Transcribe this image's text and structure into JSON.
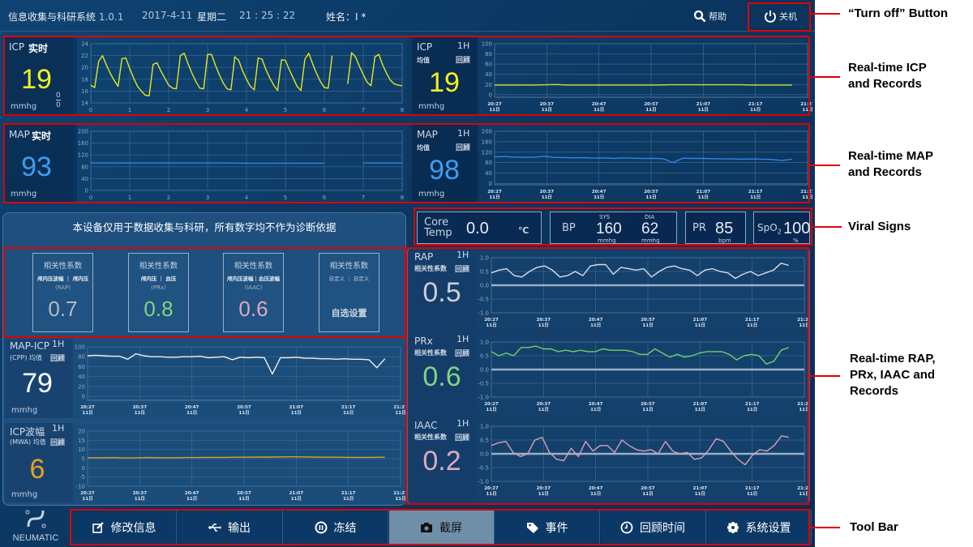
{
  "header": {
    "title": "信息收集与科研系统",
    "version": "1.0.1",
    "date": "2017-4-11",
    "weekday": "星期二",
    "time": "21 : 25 : 22",
    "patient": "姓名：I *",
    "help": "帮助",
    "shutdown": "关机"
  },
  "icp_rt": {
    "name": "ICP",
    "mode": "实时",
    "value": "19",
    "unit": "mmhg",
    "frac_top": "0",
    "frac_bottom": "0",
    "color": "#f2f21a"
  },
  "icp_1h": {
    "name": "ICP",
    "period": "1H",
    "sub": "均值",
    "review": "回顾",
    "value": "19",
    "unit": "mmhg",
    "color": "#f2f21a"
  },
  "map_rt": {
    "name": "MAP",
    "mode": "实时",
    "value": "93",
    "unit": "mmhg",
    "color": "#3d9df0"
  },
  "map_1h": {
    "name": "MAP",
    "period": "1H",
    "sub": "均值",
    "review": "回顾",
    "value": "98",
    "unit": "mmhg",
    "color": "#3d9df0"
  },
  "disclaimer": "本设备仅用于数据收集与科研，所有数字均不作为诊断依据",
  "vitals": {
    "core_label1": "Core",
    "core_label2": "Temp",
    "core_value": "0.0",
    "core_unit": "℃",
    "bp_label": "BP",
    "sys_label": "SYS",
    "sys_value": "160",
    "sys_unit": "mmhg",
    "dia_label": "DIA",
    "dia_value": "62",
    "dia_unit": "mmhg",
    "pr_label": "PR",
    "pr_value": "85",
    "pr_unit": "bpm",
    "spo2_label": "SpO",
    "spo2_sub": "2",
    "spo2_value": "100",
    "spo2_unit": "%"
  },
  "correlations": [
    {
      "title": "相关性系数",
      "sub": "颅内压波幅 ｜ 颅内压",
      "abbr": "(RAP)",
      "value": "0.7",
      "color": "#b4bcc4"
    },
    {
      "title": "相关性系数",
      "sub": "颅内压 ｜ 血压",
      "abbr": "(PRx)",
      "value": "0.8",
      "color": "#7ed67e"
    },
    {
      "title": "相关性系数",
      "sub": "颅内压波幅｜血压波幅",
      "abbr": "(IAAC)",
      "value": "0.6",
      "color": "#e0a9bd"
    },
    {
      "title": "相关性系数",
      "sub": "自定义 ｜ 自定义",
      "abbr": "",
      "value": "自选设置",
      "color": "#c8d4e0"
    }
  ],
  "cpp": {
    "name": "MAP-ICP",
    "period": "1H",
    "sub": "(CPP) 均值",
    "review": "回顾",
    "value": "79",
    "unit": "mmhg",
    "color": "#ffffff"
  },
  "mwa": {
    "name": "ICP波幅",
    "period": "1H",
    "sub": "(MWA) 均值",
    "review": "回顾",
    "value": "6",
    "unit": "mmhg",
    "color": "#e3a21c"
  },
  "rap": {
    "name": "RAP",
    "period": "1H",
    "sub": "相关性系数",
    "review": "回顾",
    "value": "0.5",
    "color": "#c9ced4"
  },
  "prx": {
    "name": "PRx",
    "period": "1H",
    "sub": "相关性系数",
    "review": "回顾",
    "value": "0.6",
    "color": "#7ed67e"
  },
  "iaac": {
    "name": "IAAC",
    "period": "1H",
    "sub": "相关性系数",
    "review": "回顾",
    "value": "0.2",
    "color": "#e0a9bd"
  },
  "toolbar": {
    "logo": "NEUMATIC",
    "items": [
      {
        "label": "修改信息",
        "icon": "edit-icon"
      },
      {
        "label": "输出",
        "icon": "usb-icon"
      },
      {
        "label": "冻结",
        "icon": "pause-icon"
      },
      {
        "label": "截屏",
        "icon": "camera-icon",
        "active": true
      },
      {
        "label": "事件",
        "icon": "tag-icon"
      },
      {
        "label": "回顾时间",
        "icon": "clock-icon"
      },
      {
        "label": "系统设置",
        "icon": "gear-icon"
      }
    ]
  },
  "annotations": {
    "turnoff": "“Turn off” Button",
    "icp": [
      "Real-time ICP",
      "and Records"
    ],
    "map": [
      "Real-time MAP",
      "and Records"
    ],
    "vitals": "Viral Signs",
    "corr": [
      "Real-time RAP,",
      "PRx, IAAC and",
      "Records"
    ],
    "toolbar": "Tool Bar"
  },
  "chart_data": {
    "time_ticks": [
      "20:27",
      "20:37",
      "20:47",
      "20:57",
      "21:07",
      "21:17",
      "21:27"
    ],
    "time_sub": "11日",
    "icp_rt": {
      "type": "line",
      "xlim": [
        0,
        8
      ],
      "xticks": [
        "0",
        "1",
        "2",
        "3",
        "4",
        "5",
        "6",
        "7",
        "8"
      ],
      "ylim": [
        14,
        24
      ],
      "yticks": [
        14,
        16,
        18,
        20,
        22,
        24
      ],
      "color": "#e6e61c",
      "values": [
        17,
        16.6,
        21,
        22,
        20.4,
        19,
        17.8,
        16.8,
        21.5,
        21.6,
        19.8,
        18.2,
        16.8,
        16,
        15.3,
        15.2,
        20.5,
        20.8,
        19.4,
        18.2,
        17,
        16.5,
        16.4,
        22,
        22.4,
        20.6,
        19,
        17.6,
        16.5,
        16.4,
        22.2,
        22.2,
        20.4,
        18.8,
        17.4,
        16.4,
        16.2,
        21.8,
        21.2,
        19.4,
        18,
        16.8,
        16.2,
        21.6,
        21.4,
        19.6,
        18.2,
        17,
        16.1,
        21.3,
        21.2,
        19.6,
        18.2,
        16.8,
        16.1,
        21.4,
        22.4,
        20.6,
        19,
        17.6,
        16.6,
        16.5,
        22,
        null,
        null,
        null,
        17.2,
        22.5,
        21.8,
        20.2,
        18.8,
        17.5,
        16.9,
        21.8,
        22.2,
        20.4,
        19,
        17.8,
        17.2,
        17,
        16.9
      ]
    },
    "map_rt": {
      "type": "line",
      "xlim": [
        0,
        8
      ],
      "xticks": [
        "0",
        "1",
        "2",
        "3",
        "4",
        "5",
        "6",
        "7",
        "8"
      ],
      "ylim": [
        0,
        200
      ],
      "yticks": [
        0,
        40,
        80,
        120,
        160,
        200
      ],
      "color": "#2f86e0",
      "values": [
        93,
        93,
        93,
        93,
        93,
        93,
        93,
        93,
        92,
        92,
        92,
        92,
        92,
        null,
        93,
        93,
        93
      ]
    },
    "icp_1h": {
      "type": "line",
      "xrange": [
        "20:27",
        "21:24"
      ],
      "ylim": [
        -5,
        100
      ],
      "yticks": [
        0,
        20,
        40,
        60,
        80,
        100
      ],
      "color": "#c8e02a",
      "values": [
        19,
        19,
        19,
        19,
        19,
        19.5,
        20,
        19,
        19,
        19,
        19,
        19,
        19,
        19,
        19,
        19,
        19,
        19.5,
        19.5,
        19.5,
        19.5,
        19.5,
        19.5,
        19.5,
        19.5,
        19,
        19,
        19,
        19,
        19
      ]
    },
    "map_1h": {
      "type": "line",
      "xrange": [
        "20:27",
        "21:24"
      ],
      "ylim": [
        -5,
        200
      ],
      "yticks": [
        0,
        40,
        80,
        120,
        160,
        200
      ],
      "color": "#2f86e0",
      "values": [
        102,
        103,
        101,
        100,
        101,
        104,
        100,
        99,
        98,
        99,
        97,
        98,
        96,
        98,
        97,
        96,
        96,
        95,
        80,
        97,
        96,
        96,
        95,
        94,
        94,
        93,
        94,
        93,
        92,
        88,
        93
      ]
    },
    "cpp": {
      "type": "line",
      "xrange": [
        "20:27",
        "21:24"
      ],
      "ylim": [
        -8,
        100
      ],
      "yticks": [
        0,
        20,
        40,
        60,
        80,
        100
      ],
      "color": "#f0f0f0",
      "values": [
        82,
        83,
        82,
        81,
        81,
        75,
        86,
        82,
        80,
        80,
        79,
        79,
        80,
        80,
        81,
        78,
        79,
        80,
        74,
        79,
        78,
        79,
        78,
        45,
        78,
        78,
        79,
        77,
        77,
        76,
        76,
        75,
        76,
        75,
        75,
        74,
        58,
        76
      ]
    },
    "mwa": {
      "type": "line",
      "xrange": [
        "20:27",
        "21:24"
      ],
      "ylim": [
        -10,
        20
      ],
      "yticks": [
        -10,
        -5,
        0,
        5,
        10,
        15,
        20
      ],
      "color": "#d6a318",
      "values": [
        5.5,
        5.5,
        5.6,
        5.4,
        5.5,
        5.6,
        5.5,
        5.5,
        5.6,
        5.6,
        5.7,
        5.7,
        5.8,
        5.8,
        5.9,
        5.9,
        6,
        6,
        5.9,
        5.8,
        5.8,
        5.7,
        5.7,
        5.7,
        5.8
      ]
    },
    "rap": {
      "type": "line",
      "xrange": [
        "20:27",
        "21:24"
      ],
      "ylim": [
        -1,
        1
      ],
      "yticks": [
        -1.0,
        -0.5,
        0.0,
        0.5,
        1.0
      ],
      "zero_line": true,
      "color": "#d8dde2",
      "values": [
        0.45,
        0.55,
        0.6,
        0.35,
        0.3,
        0.5,
        0.65,
        0.7,
        0.55,
        0.3,
        0.35,
        0.5,
        0.35,
        0.7,
        0.75,
        0.75,
        0.4,
        0.65,
        0.6,
        0.55,
        0.6,
        0.3,
        0.5,
        0.65,
        0.7,
        0.6,
        0.55,
        0.35,
        0.55,
        0.6,
        0.5,
        0.45,
        0.25,
        0.4,
        0.5,
        0.35,
        0.45,
        0.55,
        0.8,
        0.72
      ]
    },
    "prx": {
      "type": "line",
      "xrange": [
        "20:27",
        "21:24"
      ],
      "ylim": [
        -1,
        1
      ],
      "yticks": [
        -1.0,
        -0.5,
        0.0,
        0.5,
        1.0
      ],
      "zero_line": true,
      "color": "#6fcf6f",
      "values": [
        0.65,
        0.5,
        0.6,
        0.5,
        0.8,
        0.8,
        0.85,
        0.75,
        0.75,
        0.65,
        0.7,
        0.65,
        0.7,
        0.65,
        0.65,
        0.75,
        0.7,
        0.7,
        0.7,
        0.65,
        0.55,
        0.55,
        0.75,
        0.6,
        0.45,
        0.55,
        0.45,
        0.5,
        0.6,
        0.65,
        0.65,
        0.65,
        0.55,
        0.35,
        0.5,
        0.55,
        0.5,
        0.2,
        0.3,
        0.7,
        0.8
      ]
    },
    "iaac": {
      "type": "line",
      "xrange": [
        "20:27",
        "21:24"
      ],
      "ylim": [
        -1,
        1
      ],
      "yticks": [
        -1.0,
        -0.5,
        0.0,
        0.5,
        1.0
      ],
      "zero_line": true,
      "color": "#d6a0b6",
      "values": [
        0.3,
        0.4,
        0.45,
        0.05,
        -0.1,
        0,
        0.5,
        0.6,
        0.05,
        -0.2,
        -0.25,
        0.2,
        -0.1,
        0.45,
        0.1,
        0.3,
        0.3,
        0.05,
        0.5,
        0.3,
        0.15,
        0.1,
        0.15,
        0,
        0.45,
        0.1,
        0,
        0.05,
        -0.2,
        -0.15,
        0.15,
        0.55,
        0.45,
        0.1,
        -0.2,
        -0.4,
        -0.05,
        0.15,
        0.1,
        0.3,
        0.65,
        0.6
      ]
    }
  }
}
